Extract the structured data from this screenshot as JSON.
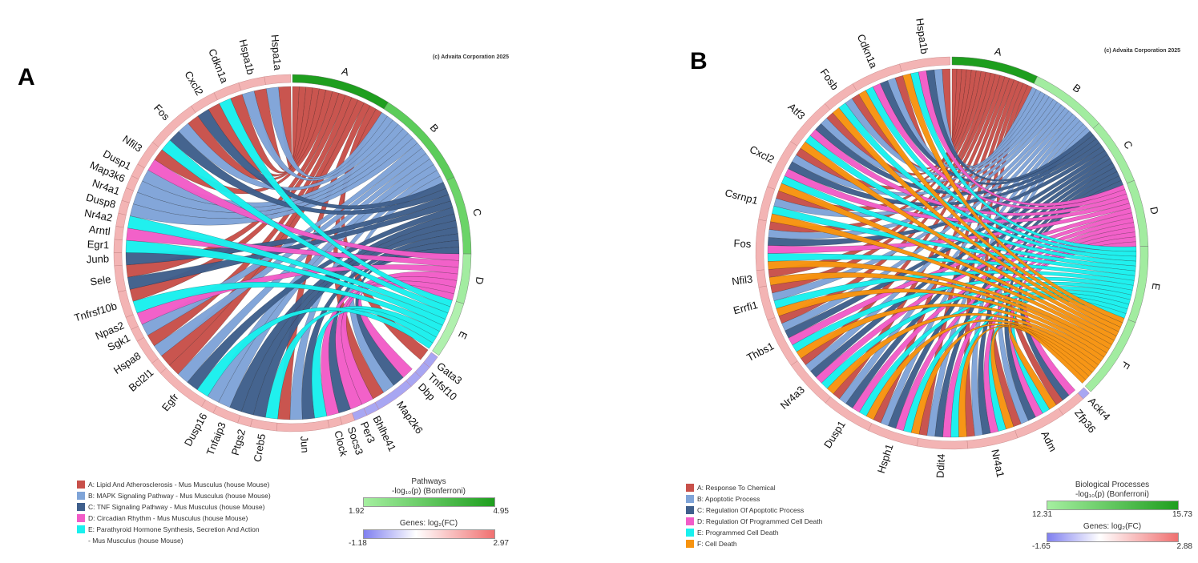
{
  "panels": [
    {
      "letter": "A",
      "copyright": "(c) Advaita Corporation 2025",
      "legend": [
        {
          "key": "A",
          "label": "A: Lipid And Atherosclerosis - Mus Musculus (house Mouse)",
          "color": "#c8504a"
        },
        {
          "key": "B",
          "label": "B: MAPK Signaling Pathway - Mus Musculus (house Mouse)",
          "color": "#7fa4d8"
        },
        {
          "key": "C",
          "label": "C: TNF Signaling Pathway - Mus Musculus (house Mouse)",
          "color": "#3f5f8c"
        },
        {
          "key": "D",
          "label": "D: Circadian Rhythm - Mus Musculus (house Mouse)",
          "color": "#f25cc8"
        },
        {
          "key": "E",
          "label": "E: Parathyroid Hormone Synthesis, Secretion And Action",
          "label2": "- Mus Musculus (house Mouse)",
          "color": "#19f0ee"
        }
      ],
      "scales": {
        "category_title": "Pathways",
        "category_subtitle": "-log₁₀(p) (Bonferroni)",
        "category_min": "1.92",
        "category_max": "4.95",
        "gene_title": "Genes: log₂(FC)",
        "gene_min": "-1.18",
        "gene_max": "2.97"
      }
    },
    {
      "letter": "B",
      "copyright": "(c) Advaita Corporation 2025",
      "legend": [
        {
          "key": "A",
          "label": "A: Response To Chemical",
          "color": "#c8504a"
        },
        {
          "key": "B",
          "label": "B: Apoptotic Process",
          "color": "#7fa4d8"
        },
        {
          "key": "C",
          "label": "C: Regulation Of Apoptotic Process",
          "color": "#3f5f8c"
        },
        {
          "key": "D",
          "label": "D: Regulation Of Programmed Cell Death",
          "color": "#f25cc8"
        },
        {
          "key": "E",
          "label": "E: Programmed Cell Death",
          "color": "#19f0ee"
        },
        {
          "key": "F",
          "label": "F: Cell Death",
          "color": "#f7930f"
        }
      ],
      "scales": {
        "category_title": "Biological Processes",
        "category_subtitle": "-log₁₀(p) (Bonferroni)",
        "category_min": "12.31",
        "category_max": "15.73",
        "gene_title": "Genes: log₂(FC)",
        "gene_min": "-1.65",
        "gene_max": "2.88"
      }
    }
  ],
  "chart_data": [
    {
      "type": "chord",
      "panel": "A",
      "category_scale_label": "Pathways -log10(p) (Bonferroni)",
      "category_scale_range": [
        1.92,
        4.95
      ],
      "gene_scale_label": "Genes: log2(FC)",
      "gene_scale_range": [
        -1.18,
        2.97
      ],
      "categories": [
        {
          "key": "A",
          "name": "Lipid And Atherosclerosis - Mus Musculus (house Mouse)",
          "color": "#c8504a",
          "ring_color": "#1e9e1e",
          "genes": [
            "Hspa1a",
            "Hspa1b",
            "Cdkn1a",
            "Cxcl2",
            "Fos",
            "Nfil3",
            "Sele",
            "Tnfrsf10b",
            "Hspa8",
            "Bcl2l1",
            "Egfr",
            "Jun",
            "Gata3",
            "Map2k6"
          ]
        },
        {
          "key": "B",
          "name": "MAPK Signaling Pathway - Mus Musculus (house Mouse)",
          "color": "#7fa4d8",
          "ring_color": "#5ccc5a",
          "genes": [
            "Hspa1a",
            "Hspa1b",
            "Fos",
            "Dusp1",
            "Map3k6",
            "Nr4a1",
            "Dusp8",
            "Sgk1",
            "Hspa8",
            "Egfr",
            "Dusp16",
            "Tnfaip3",
            "Jun",
            "Map2k6"
          ]
        },
        {
          "key": "C",
          "name": "TNF Signaling Pathway - Mus Musculus (house Mouse)",
          "color": "#3f5f8c",
          "ring_color": "#6bd468",
          "genes": [
            "Cxcl2",
            "Fos",
            "Junb",
            "Sele",
            "Egfr",
            "Tnfaip3",
            "Ptgs2",
            "Creb5",
            "Jun",
            "Socs3",
            "Map2k6"
          ]
        },
        {
          "key": "D",
          "name": "Circadian Rhythm - Mus Musculus (house Mouse)",
          "color": "#f25cc8",
          "ring_color": "#a2ecA0",
          "genes": [
            "Nfil3",
            "Arntl",
            "Npas2",
            "Clock",
            "Per3",
            "Bhlhe41",
            "Dbp"
          ]
        },
        {
          "key": "E",
          "name": "Parathyroid Hormone Synthesis, Secretion And Action - Mus Musculus (house Mouse)",
          "color": "#19f0ee",
          "ring_color": "#b0f0ae",
          "genes": [
            "Cdkn1a",
            "Fos",
            "Nr4a2",
            "Egr1",
            "Tnfrsf10b",
            "Creb5",
            "Jun",
            "Egfr"
          ]
        }
      ],
      "genes": [
        {
          "name": "Hspa1a",
          "direction": "up"
        },
        {
          "name": "Hspa1b",
          "direction": "up"
        },
        {
          "name": "Cdkn1a",
          "direction": "up"
        },
        {
          "name": "Cxcl2",
          "direction": "up"
        },
        {
          "name": "Fos",
          "direction": "up"
        },
        {
          "name": "Nfil3",
          "direction": "up"
        },
        {
          "name": "Dusp1",
          "direction": "up"
        },
        {
          "name": "Map3k6",
          "direction": "up"
        },
        {
          "name": "Nr4a1",
          "direction": "up"
        },
        {
          "name": "Dusp8",
          "direction": "up"
        },
        {
          "name": "Nr4a2",
          "direction": "up"
        },
        {
          "name": "Arntl",
          "direction": "up"
        },
        {
          "name": "Egr1",
          "direction": "up"
        },
        {
          "name": "Junb",
          "direction": "up"
        },
        {
          "name": "Sele",
          "direction": "up"
        },
        {
          "name": "Tnfrsf10b",
          "direction": "up"
        },
        {
          "name": "Npas2",
          "direction": "up"
        },
        {
          "name": "Sgk1",
          "direction": "up"
        },
        {
          "name": "Hspa8",
          "direction": "up"
        },
        {
          "name": "Bcl2l1",
          "direction": "up"
        },
        {
          "name": "Egfr",
          "direction": "up"
        },
        {
          "name": "Dusp16",
          "direction": "up"
        },
        {
          "name": "Tnfaip3",
          "direction": "up"
        },
        {
          "name": "Ptgs2",
          "direction": "up"
        },
        {
          "name": "Creb5",
          "direction": "up"
        },
        {
          "name": "Jun",
          "direction": "up"
        },
        {
          "name": "Clock",
          "direction": "up"
        },
        {
          "name": "Socs3",
          "direction": "up"
        },
        {
          "name": "Per3",
          "direction": "down"
        },
        {
          "name": "Bhlhe41",
          "direction": "down"
        },
        {
          "name": "Map2k6",
          "direction": "down"
        },
        {
          "name": "Dbp",
          "direction": "down"
        },
        {
          "name": "Tnfsf10",
          "direction": "down"
        },
        {
          "name": "Gata3",
          "direction": "down"
        }
      ]
    },
    {
      "type": "chord",
      "panel": "B",
      "category_scale_label": "Biological Processes -log10(p) (Bonferroni)",
      "category_scale_range": [
        12.31,
        15.73
      ],
      "gene_scale_label": "Genes: log2(FC)",
      "gene_scale_range": [
        -1.65,
        2.88
      ],
      "categories": [
        {
          "key": "A",
          "name": "Response To Chemical",
          "color": "#c8504a",
          "ring_color": "#1e9e1e",
          "genes": [
            "Hspa1b",
            "Cdkn1a",
            "Fosb",
            "Atf3",
            "Cxcl2",
            "Csrnp1",
            "Fos",
            "Nfil3",
            "Errfi1",
            "Thbs1",
            "Nr4a3",
            "Dusp1",
            "Hsph1",
            "Ddit4",
            "Nr4a1",
            "Adm",
            "Zfp36"
          ]
        },
        {
          "key": "B",
          "name": "Apoptotic Process",
          "color": "#7fa4d8",
          "ring_color": "#a2eca0",
          "genes": [
            "Hspa1b",
            "Cdkn1a",
            "Fosb",
            "Atf3",
            "Cxcl2",
            "Csrnp1",
            "Fos",
            "Errfi1",
            "Thbs1",
            "Nr4a3",
            "Dusp1",
            "Hsph1",
            "Ddit4",
            "Nr4a1",
            "Adm"
          ]
        },
        {
          "key": "C",
          "name": "Regulation Of Apoptotic Process",
          "color": "#3f5f8c",
          "ring_color": "#a2eca0",
          "genes": [
            "Hspa1b",
            "Cdkn1a",
            "Atf3",
            "Cxcl2",
            "Fos",
            "Thbs1",
            "Nr4a3",
            "Dusp1",
            "Hsph1",
            "Ddit4",
            "Nr4a1",
            "Adm",
            "Zfp36"
          ]
        },
        {
          "key": "D",
          "name": "Regulation Of Programmed Cell Death",
          "color": "#f25cc8",
          "ring_color": "#a2eca0",
          "genes": [
            "Hspa1b",
            "Cdkn1a",
            "Atf3",
            "Cxcl2",
            "Fos",
            "Thbs1",
            "Nr4a3",
            "Dusp1",
            "Hsph1",
            "Ddit4",
            "Nr4a1",
            "Adm",
            "Zfp36"
          ]
        },
        {
          "key": "E",
          "name": "Programmed Cell Death",
          "color": "#19f0ee",
          "ring_color": "#a2eca0",
          "genes": [
            "Hspa1b",
            "Cdkn1a",
            "Fosb",
            "Atf3",
            "Cxcl2",
            "Csrnp1",
            "Fos",
            "Errfi1",
            "Thbs1",
            "Nr4a3",
            "Dusp1",
            "Hsph1",
            "Ddit4",
            "Nr4a1",
            "Adm"
          ]
        },
        {
          "key": "F",
          "name": "Cell Death",
          "color": "#f7930f",
          "ring_color": "#a2eca0",
          "genes": [
            "Hspa1b",
            "Cdkn1a",
            "Fosb",
            "Atf3",
            "Cxcl2",
            "Csrnp1",
            "Fos",
            "Nfil3",
            "Errfi1",
            "Thbs1",
            "Nr4a3",
            "Dusp1",
            "Hsph1",
            "Ddit4",
            "Nr4a1",
            "Adm"
          ]
        }
      ],
      "genes": [
        {
          "name": "Hspa1b",
          "direction": "up"
        },
        {
          "name": "Cdkn1a",
          "direction": "up"
        },
        {
          "name": "Fosb",
          "direction": "up"
        },
        {
          "name": "Atf3",
          "direction": "up"
        },
        {
          "name": "Cxcl2",
          "direction": "up"
        },
        {
          "name": "Csrnp1",
          "direction": "up"
        },
        {
          "name": "Fos",
          "direction": "up"
        },
        {
          "name": "Nfil3",
          "direction": "up"
        },
        {
          "name": "Errfi1",
          "direction": "up"
        },
        {
          "name": "Thbs1",
          "direction": "up"
        },
        {
          "name": "Nr4a3",
          "direction": "up"
        },
        {
          "name": "Dusp1",
          "direction": "up"
        },
        {
          "name": "Hsph1",
          "direction": "up"
        },
        {
          "name": "Ddit4",
          "direction": "up"
        },
        {
          "name": "Nr4a1",
          "direction": "up"
        },
        {
          "name": "Adm",
          "direction": "up"
        },
        {
          "name": "Zfp36",
          "direction": "up"
        },
        {
          "name": "Ackr4",
          "direction": "down"
        }
      ]
    }
  ]
}
